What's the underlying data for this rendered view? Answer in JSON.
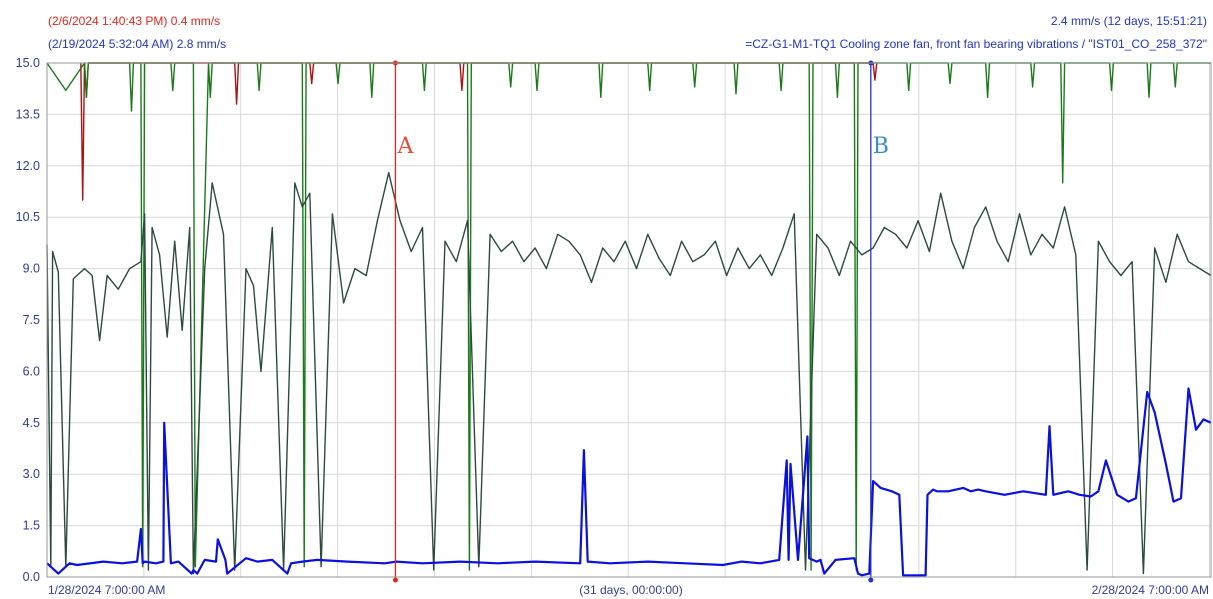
{
  "header": {
    "cursor_a": "(2/6/2024 1:40:43 PM)  0.4 mm/s",
    "cursor_b": "(2/19/2024 5:32:04 AM)  2.8 mm/s",
    "delta": "2.4 mm/s (12 days, 15:51:21)",
    "series_desc": "=CZ-G1-M1-TQ1 Cooling zone fan, front fan bearing vibrations  /  \"IST01_CO_258_372\""
  },
  "colors": {
    "cursor_a": "#e8231a",
    "cursor_b": "#2233cc",
    "series_main": "#0a10e0",
    "series_dark": "#2c4a40",
    "series_green": "#1a7a1a",
    "series_red": "#b01010",
    "grid": "#d8d8d8",
    "label": "#2f3d9a"
  },
  "chart_data": {
    "type": "line",
    "x_start_label": "1/28/2024 7:00:00 AM",
    "x_span_label": "(31 days, 00:00:00)",
    "x_end_label": "2/28/2024 7:00:00 AM",
    "x_range_days": [
      0,
      31
    ],
    "ylim": [
      0,
      15
    ],
    "y_ticks": [
      "0.0",
      "1.5",
      "3.0",
      "4.5",
      "6.0",
      "7.5",
      "9.0",
      "10.5",
      "12.0",
      "13.5",
      "15.0"
    ],
    "grid": true,
    "cursors": [
      {
        "label": "A",
        "x_days": 9.28,
        "value": 0.4
      },
      {
        "label": "B",
        "x_days": 21.94,
        "value": 2.8
      }
    ],
    "series": [
      {
        "role": "bearing-vibration",
        "color": "#0a10e0",
        "x": [
          0,
          0.3,
          0.6,
          0.8,
          1.5,
          2.0,
          2.4,
          2.5,
          2.55,
          2.6,
          2.9,
          3.1,
          3.12,
          3.3,
          3.5,
          3.85,
          3.9,
          4.0,
          4.2,
          4.5,
          4.55,
          4.75,
          4.8,
          5.3,
          5.6,
          6.0,
          6.4,
          6.5,
          6.8,
          7.2,
          8.0,
          9.0,
          9.3,
          10.0,
          11.0,
          12.0,
          13.0,
          14.2,
          14.3,
          14.4,
          15.0,
          16.0,
          17.0,
          18.0,
          18.5,
          19.0,
          19.5,
          19.7,
          19.75,
          19.8,
          20.0,
          20.25,
          20.3,
          20.5,
          20.6,
          20.7,
          21.0,
          21.5,
          21.6,
          21.7,
          21.9,
          22.0,
          22.2,
          22.5,
          22.7,
          22.8,
          23.4,
          23.45,
          23.6,
          23.7,
          24.0,
          24.4,
          24.6,
          24.8,
          25.0,
          25.5,
          26.0,
          26.6,
          26.7,
          26.8,
          27.0,
          27.2,
          27.5,
          27.8,
          28.0,
          28.2,
          28.5,
          28.8,
          29.0,
          29.3,
          29.5,
          29.8,
          30.0,
          30.2,
          30.4,
          30.6,
          30.8,
          31.0
        ],
        "values": [
          0.4,
          0.1,
          0.4,
          0.35,
          0.45,
          0.4,
          0.45,
          1.4,
          0.4,
          0.45,
          0.4,
          0.45,
          4.5,
          0.4,
          0.45,
          0.1,
          0.2,
          0.1,
          0.5,
          0.45,
          1.1,
          0.5,
          0.1,
          0.55,
          0.45,
          0.5,
          0.1,
          0.4,
          0.45,
          0.5,
          0.45,
          0.4,
          0.45,
          0.4,
          0.45,
          0.4,
          0.45,
          0.4,
          3.7,
          0.45,
          0.4,
          0.45,
          0.4,
          0.35,
          0.45,
          0.4,
          0.5,
          3.4,
          0.5,
          3.3,
          0.5,
          4.1,
          0.55,
          0.45,
          0.5,
          0.1,
          0.5,
          0.55,
          0.1,
          0.05,
          0.1,
          2.8,
          2.6,
          2.5,
          2.4,
          0.05,
          0.05,
          2.4,
          2.55,
          2.5,
          2.5,
          2.6,
          2.5,
          2.55,
          2.5,
          2.4,
          2.5,
          2.4,
          4.4,
          2.4,
          2.45,
          2.5,
          2.4,
          2.35,
          2.5,
          3.4,
          2.4,
          2.2,
          2.3,
          5.4,
          4.8,
          3.3,
          2.2,
          2.3,
          5.5,
          4.3,
          4.6,
          4.5
        ]
      },
      {
        "role": "dark",
        "color": "#2c4a40",
        "x": [
          0,
          0.1,
          0.15,
          0.3,
          0.5,
          0.7,
          1.0,
          1.2,
          1.4,
          1.6,
          1.9,
          2.2,
          2.5,
          2.6,
          2.7,
          2.8,
          3.0,
          3.2,
          3.4,
          3.6,
          3.8,
          3.9,
          4.2,
          4.4,
          4.7,
          5.0,
          5.3,
          5.5,
          5.7,
          6.0,
          6.3,
          6.6,
          6.8,
          7.0,
          7.3,
          7.6,
          7.9,
          8.2,
          8.5,
          8.8,
          9.1,
          9.4,
          9.7,
          10.0,
          10.3,
          10.6,
          10.9,
          11.2,
          11.5,
          11.8,
          12.1,
          12.4,
          12.7,
          13.0,
          13.3,
          13.6,
          13.9,
          14.2,
          14.5,
          14.8,
          15.1,
          15.4,
          15.7,
          16.0,
          16.3,
          16.6,
          16.9,
          17.2,
          17.5,
          17.8,
          18.1,
          18.4,
          18.7,
          19.0,
          19.3,
          19.6,
          19.9,
          20.2,
          20.5,
          20.8,
          21.1,
          21.4,
          21.7,
          22.0,
          22.3,
          22.6,
          22.9,
          23.2,
          23.5,
          23.8,
          24.1,
          24.4,
          24.7,
          25.0,
          25.3,
          25.6,
          25.9,
          26.2,
          26.5,
          26.8,
          27.1,
          27.4,
          27.7,
          28.0,
          28.3,
          28.6,
          28.9,
          29.2,
          29.5,
          29.8,
          30.1,
          30.4,
          30.7,
          31.0
        ],
        "values": [
          9.7,
          0.3,
          9.5,
          8.9,
          0.3,
          8.7,
          9.0,
          8.8,
          6.9,
          8.8,
          8.4,
          9.0,
          9.2,
          10.6,
          0.2,
          10.2,
          9.4,
          7.0,
          9.8,
          7.2,
          10.2,
          0.1,
          9.0,
          11.5,
          10.0,
          0.2,
          9.0,
          8.5,
          6.0,
          10.2,
          0.2,
          11.5,
          10.8,
          11.2,
          0.3,
          10.6,
          8.0,
          9.0,
          8.8,
          10.4,
          11.8,
          10.4,
          9.5,
          10.2,
          0.2,
          9.8,
          9.2,
          10.4,
          0.3,
          10.0,
          9.5,
          9.8,
          9.2,
          9.6,
          9.0,
          10.0,
          9.8,
          9.4,
          8.6,
          9.6,
          9.2,
          9.8,
          9.0,
          10.0,
          9.3,
          8.8,
          9.8,
          9.2,
          9.4,
          9.8,
          8.8,
          9.6,
          9.0,
          9.4,
          8.8,
          9.6,
          10.6,
          0.2,
          10.0,
          9.6,
          8.8,
          9.8,
          9.4,
          9.6,
          10.2,
          10.0,
          9.6,
          10.4,
          9.5,
          11.2,
          9.8,
          9.0,
          10.2,
          10.8,
          9.8,
          9.2,
          10.6,
          9.4,
          10.0,
          9.6,
          10.8,
          9.4,
          0.2,
          9.8,
          9.2,
          8.8,
          9.2,
          0.1,
          9.6,
          8.6,
          10.0,
          9.2,
          9.0,
          8.8
        ]
      },
      {
        "role": "green",
        "color": "#1a7a1a",
        "x": [
          0,
          0.5,
          1.0,
          1.05,
          1.1,
          1.4,
          2.2,
          2.25,
          2.3,
          2.5,
          2.55,
          2.6,
          3.3,
          3.35,
          3.4,
          3.9,
          3.95,
          4.3,
          4.35,
          4.4,
          5.6,
          5.65,
          5.7,
          6.8,
          6.85,
          6.9,
          7.7,
          7.75,
          7.8,
          8.6,
          8.65,
          8.7,
          10.0,
          10.05,
          10.1,
          11.2,
          11.25,
          11.3,
          12.3,
          12.35,
          12.4,
          13.0,
          13.05,
          13.1,
          14.7,
          14.75,
          14.8,
          16.0,
          16.05,
          16.1,
          17.2,
          17.25,
          17.3,
          18.3,
          18.35,
          18.4,
          19.5,
          19.55,
          19.6,
          20.3,
          20.35,
          20.4,
          21.0,
          21.05,
          21.1,
          21.5,
          21.55,
          21.6,
          22.9,
          22.95,
          23.0,
          24.0,
          24.05,
          24.1,
          25.0,
          25.05,
          25.1,
          26.2,
          26.25,
          26.3,
          27.0,
          27.05,
          27.1,
          28.3,
          28.35,
          28.4,
          29.3,
          29.35,
          29.4,
          30.0,
          30.05,
          30.1,
          31.0
        ],
        "values": [
          15.0,
          14.2,
          15.0,
          14.0,
          15.0,
          15.0,
          15.0,
          13.6,
          15.0,
          15.0,
          0.3,
          15.0,
          15.0,
          14.2,
          15.0,
          15.0,
          0.3,
          15.0,
          14.0,
          15.0,
          15.0,
          14.2,
          15.0,
          15.0,
          0.3,
          15.0,
          15.0,
          14.4,
          15.0,
          15.0,
          14.0,
          15.0,
          15.0,
          14.2,
          15.0,
          15.0,
          0.2,
          15.0,
          15.0,
          14.3,
          15.0,
          15.0,
          14.2,
          15.0,
          15.0,
          14.0,
          15.0,
          15.0,
          14.2,
          15.0,
          15.0,
          14.3,
          15.0,
          15.0,
          14.1,
          15.0,
          15.0,
          14.2,
          15.0,
          15.0,
          0.2,
          15.0,
          15.0,
          14.0,
          15.0,
          15.0,
          0.2,
          15.0,
          15.0,
          14.2,
          15.0,
          15.0,
          14.4,
          15.0,
          15.0,
          14.0,
          15.0,
          15.0,
          14.3,
          15.0,
          15.0,
          11.5,
          15.0,
          15.0,
          14.2,
          15.0,
          15.0,
          14.0,
          15.0,
          15.0,
          14.3,
          15.0,
          15.0
        ]
      },
      {
        "role": "red",
        "color": "#b01010",
        "x": [
          0.9,
          0.95,
          1.0,
          1.05,
          1.1,
          5.0,
          5.05,
          5.1,
          7.0,
          7.05,
          7.1,
          11.0,
          11.05,
          11.1,
          22.0,
          22.05,
          22.1
        ],
        "values": [
          15.0,
          11.0,
          15.0,
          14.0,
          15.0,
          15.0,
          13.8,
          15.0,
          15.0,
          14.4,
          15.0,
          15.0,
          14.2,
          15.0,
          15.0,
          14.5,
          15.0
        ]
      }
    ]
  }
}
